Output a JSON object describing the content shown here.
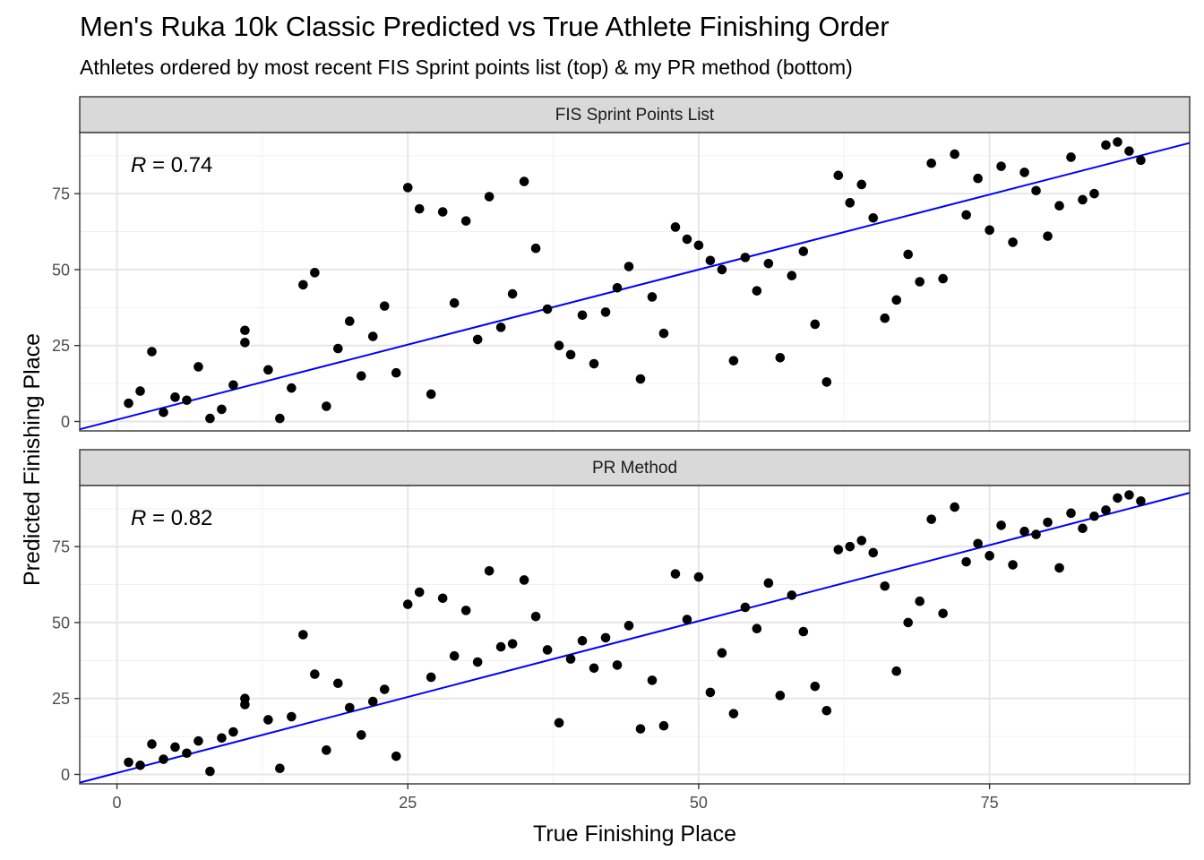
{
  "chart_data": {
    "type": "scatter",
    "title": "Men's Ruka 10k Classic Predicted vs True Athlete Finishing Order",
    "subtitle": "Athletes ordered by most recent FIS Sprint points list (top) & my PR method (bottom)",
    "xlabel": "True Finishing Place",
    "ylabel": "Predicted Finishing Place",
    "xlim": [
      -3.2,
      92.2
    ],
    "ylim": [
      -3.1,
      95.1
    ],
    "x_ticks": [
      0,
      25,
      50,
      75
    ],
    "y_ticks": [
      0,
      25,
      50,
      75
    ],
    "grid": true,
    "point_color": "#000000",
    "line_color": "#0000ff",
    "panels": [
      {
        "strip": "FIS Sprint Points List",
        "r_symbol": "R",
        "r_value": " = 0.74",
        "fit": {
          "intercept": 0.6,
          "slope": 0.988
        },
        "points": [
          [
            1,
            6
          ],
          [
            2,
            10
          ],
          [
            3,
            23
          ],
          [
            4,
            3
          ],
          [
            5,
            8
          ],
          [
            6,
            7
          ],
          [
            7,
            18
          ],
          [
            8,
            1
          ],
          [
            9,
            4
          ],
          [
            10,
            12
          ],
          [
            11,
            30
          ],
          [
            11,
            26
          ],
          [
            13,
            17
          ],
          [
            14,
            1
          ],
          [
            15,
            11
          ],
          [
            16,
            45
          ],
          [
            17,
            49
          ],
          [
            18,
            5
          ],
          [
            19,
            24
          ],
          [
            20,
            33
          ],
          [
            21,
            15
          ],
          [
            22,
            28
          ],
          [
            23,
            38
          ],
          [
            24,
            16
          ],
          [
            25,
            77
          ],
          [
            26,
            70
          ],
          [
            27,
            9
          ],
          [
            28,
            69
          ],
          [
            29,
            39
          ],
          [
            30,
            66
          ],
          [
            31,
            27
          ],
          [
            32,
            74
          ],
          [
            33,
            31
          ],
          [
            34,
            42
          ],
          [
            35,
            79
          ],
          [
            36,
            57
          ],
          [
            37,
            37
          ],
          [
            38,
            25
          ],
          [
            39,
            22
          ],
          [
            40,
            35
          ],
          [
            41,
            19
          ],
          [
            42,
            36
          ],
          [
            43,
            44
          ],
          [
            44,
            51
          ],
          [
            45,
            14
          ],
          [
            46,
            41
          ],
          [
            47,
            29
          ],
          [
            48,
            64
          ],
          [
            49,
            60
          ],
          [
            50,
            58
          ],
          [
            51,
            53
          ],
          [
            52,
            50
          ],
          [
            53,
            20
          ],
          [
            54,
            54
          ],
          [
            55,
            43
          ],
          [
            56,
            52
          ],
          [
            57,
            21
          ],
          [
            58,
            48
          ],
          [
            59,
            56
          ],
          [
            60,
            32
          ],
          [
            61,
            13
          ],
          [
            62,
            81
          ],
          [
            63,
            72
          ],
          [
            64,
            78
          ],
          [
            65,
            67
          ],
          [
            66,
            34
          ],
          [
            67,
            40
          ],
          [
            68,
            55
          ],
          [
            69,
            46
          ],
          [
            70,
            85
          ],
          [
            71,
            47
          ],
          [
            72,
            88
          ],
          [
            73,
            68
          ],
          [
            74,
            80
          ],
          [
            75,
            63
          ],
          [
            76,
            84
          ],
          [
            77,
            59
          ],
          [
            78,
            82
          ],
          [
            79,
            76
          ],
          [
            80,
            61
          ],
          [
            81,
            71
          ],
          [
            82,
            87
          ],
          [
            83,
            73
          ],
          [
            84,
            75
          ],
          [
            85,
            91
          ],
          [
            86,
            92
          ],
          [
            87,
            89
          ],
          [
            88,
            86
          ]
        ]
      },
      {
        "strip": "PR Method",
        "r_symbol": "R",
        "r_value": " = 0.82",
        "fit": {
          "intercept": 0.5,
          "slope": 1.0
        },
        "points": [
          [
            1,
            4
          ],
          [
            2,
            3
          ],
          [
            3,
            10
          ],
          [
            4,
            5
          ],
          [
            5,
            9
          ],
          [
            6,
            7
          ],
          [
            7,
            11
          ],
          [
            8,
            1
          ],
          [
            9,
            12
          ],
          [
            10,
            14
          ],
          [
            11,
            25
          ],
          [
            11,
            23
          ],
          [
            13,
            18
          ],
          [
            14,
            2
          ],
          [
            15,
            19
          ],
          [
            16,
            46
          ],
          [
            17,
            33
          ],
          [
            18,
            8
          ],
          [
            19,
            30
          ],
          [
            20,
            22
          ],
          [
            21,
            13
          ],
          [
            22,
            24
          ],
          [
            23,
            28
          ],
          [
            24,
            6
          ],
          [
            25,
            56
          ],
          [
            26,
            60
          ],
          [
            27,
            32
          ],
          [
            28,
            58
          ],
          [
            29,
            39
          ],
          [
            30,
            54
          ],
          [
            31,
            37
          ],
          [
            32,
            67
          ],
          [
            33,
            42
          ],
          [
            34,
            43
          ],
          [
            35,
            64
          ],
          [
            36,
            52
          ],
          [
            37,
            41
          ],
          [
            38,
            17
          ],
          [
            39,
            38
          ],
          [
            40,
            44
          ],
          [
            41,
            35
          ],
          [
            42,
            45
          ],
          [
            43,
            36
          ],
          [
            44,
            49
          ],
          [
            45,
            15
          ],
          [
            46,
            31
          ],
          [
            47,
            16
          ],
          [
            48,
            66
          ],
          [
            49,
            51
          ],
          [
            50,
            65
          ],
          [
            51,
            27
          ],
          [
            52,
            40
          ],
          [
            53,
            20
          ],
          [
            54,
            55
          ],
          [
            55,
            48
          ],
          [
            56,
            63
          ],
          [
            57,
            26
          ],
          [
            58,
            59
          ],
          [
            59,
            47
          ],
          [
            60,
            29
          ],
          [
            61,
            21
          ],
          [
            62,
            74
          ],
          [
            63,
            75
          ],
          [
            64,
            77
          ],
          [
            65,
            73
          ],
          [
            66,
            62
          ],
          [
            67,
            34
          ],
          [
            68,
            50
          ],
          [
            69,
            57
          ],
          [
            70,
            84
          ],
          [
            71,
            53
          ],
          [
            72,
            88
          ],
          [
            73,
            70
          ],
          [
            74,
            76
          ],
          [
            75,
            72
          ],
          [
            76,
            82
          ],
          [
            77,
            69
          ],
          [
            78,
            80
          ],
          [
            79,
            79
          ],
          [
            80,
            83
          ],
          [
            81,
            68
          ],
          [
            82,
            86
          ],
          [
            83,
            81
          ],
          [
            84,
            85
          ],
          [
            85,
            87
          ],
          [
            86,
            91
          ],
          [
            87,
            92
          ],
          [
            88,
            90
          ]
        ]
      }
    ]
  }
}
